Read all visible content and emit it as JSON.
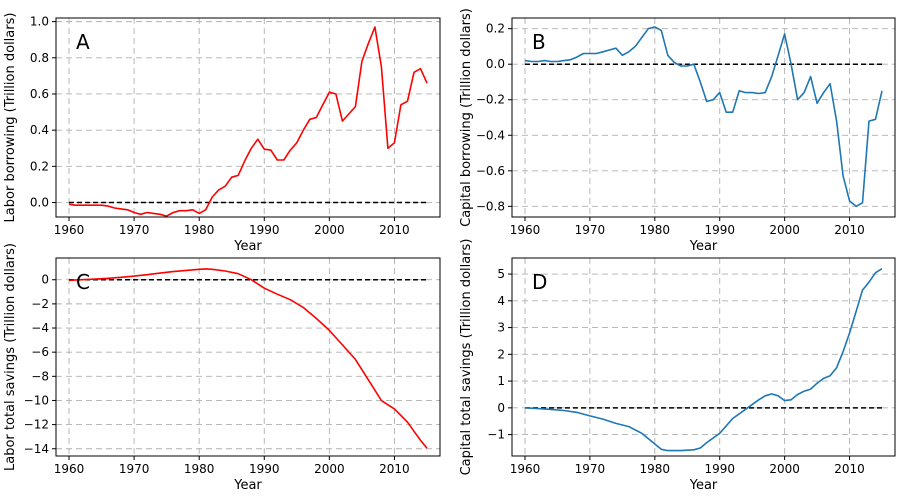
{
  "chart_data": [
    {
      "type": "line",
      "panel_label": "A",
      "xlabel": "Year",
      "ylabel": "Labor borrowing (Trillion dollars)",
      "xlim": [
        1958,
        2017
      ],
      "ylim": [
        -0.08,
        1.02
      ],
      "x_ticks": [
        1960,
        1970,
        1980,
        1990,
        2000,
        2010
      ],
      "y_ticks": [
        0.0,
        0.2,
        0.4,
        0.6,
        0.8,
        1.0
      ],
      "y_tick_labels": [
        "0.0",
        "0.2",
        "0.4",
        "0.6",
        "0.8",
        "1.0"
      ],
      "grid": true,
      "reference_line": {
        "y": 0,
        "x_from": 1960,
        "x_to": 2015,
        "style": "dashed",
        "color": "#000000"
      },
      "series": [
        {
          "color": "#ff0000",
          "x": [
            1960,
            1961,
            1962,
            1963,
            1964,
            1965,
            1966,
            1967,
            1968,
            1969,
            1970,
            1971,
            1972,
            1973,
            1974,
            1975,
            1976,
            1977,
            1978,
            1979,
            1980,
            1981,
            1982,
            1983,
            1984,
            1985,
            1986,
            1987,
            1988,
            1989,
            1990,
            1991,
            1992,
            1993,
            1994,
            1995,
            1996,
            1997,
            1998,
            1999,
            2000,
            2001,
            2002,
            2003,
            2004,
            2005,
            2006,
            2007,
            2008,
            2009,
            2010,
            2011,
            2012,
            2013,
            2014,
            2015
          ],
          "y": [
            -0.01,
            -0.015,
            -0.015,
            -0.015,
            -0.015,
            -0.015,
            -0.02,
            -0.03,
            -0.035,
            -0.04,
            -0.055,
            -0.065,
            -0.055,
            -0.06,
            -0.065,
            -0.075,
            -0.055,
            -0.045,
            -0.045,
            -0.04,
            -0.06,
            -0.04,
            0.03,
            0.07,
            0.09,
            0.14,
            0.15,
            0.23,
            0.3,
            0.35,
            0.295,
            0.29,
            0.235,
            0.235,
            0.29,
            0.33,
            0.4,
            0.46,
            0.47,
            0.54,
            0.61,
            0.6,
            0.45,
            0.49,
            0.53,
            0.78,
            0.88,
            0.97,
            0.75,
            0.3,
            0.33,
            0.54,
            0.56,
            0.72,
            0.74,
            0.66
          ]
        }
      ]
    },
    {
      "type": "line",
      "panel_label": "B",
      "xlabel": "Year",
      "ylabel": "Capital borrowing (Trillion dollars)",
      "xlim": [
        1958,
        2017
      ],
      "ylim": [
        -0.86,
        0.26
      ],
      "x_ticks": [
        1960,
        1970,
        1980,
        1990,
        2000,
        2010
      ],
      "y_ticks": [
        -0.8,
        -0.6,
        -0.4,
        -0.2,
        0.0,
        0.2
      ],
      "y_tick_labels": [
        "−0.8",
        "−0.6",
        "−0.4",
        "−0.2",
        "0.0",
        "0.2"
      ],
      "grid": true,
      "reference_line": {
        "y": 0,
        "x_from": 1960,
        "x_to": 2015,
        "style": "dashed",
        "color": "#000000"
      },
      "series": [
        {
          "color": "#1f77b4",
          "x": [
            1960,
            1961,
            1962,
            1963,
            1964,
            1965,
            1966,
            1967,
            1968,
            1969,
            1970,
            1971,
            1972,
            1973,
            1974,
            1975,
            1976,
            1977,
            1978,
            1979,
            1980,
            1981,
            1982,
            1983,
            1984,
            1985,
            1986,
            1987,
            1988,
            1989,
            1990,
            1991,
            1992,
            1993,
            1994,
            1995,
            1996,
            1997,
            1998,
            1999,
            2000,
            2001,
            2002,
            2003,
            2004,
            2005,
            2006,
            2007,
            2008,
            2009,
            2010,
            2011,
            2012,
            2013,
            2014,
            2015
          ],
          "y": [
            0.02,
            0.015,
            0.015,
            0.02,
            0.015,
            0.015,
            0.02,
            0.025,
            0.04,
            0.06,
            0.06,
            0.06,
            0.07,
            0.08,
            0.09,
            0.05,
            0.07,
            0.1,
            0.15,
            0.2,
            0.21,
            0.19,
            0.05,
            0.01,
            -0.01,
            -0.01,
            0.0,
            -0.1,
            -0.21,
            -0.2,
            -0.16,
            -0.27,
            -0.27,
            -0.15,
            -0.16,
            -0.16,
            -0.165,
            -0.16,
            -0.07,
            0.05,
            0.17,
            0.0,
            -0.2,
            -0.16,
            -0.07,
            -0.22,
            -0.16,
            -0.11,
            -0.32,
            -0.63,
            -0.77,
            -0.8,
            -0.78,
            -0.32,
            -0.31,
            -0.15
          ]
        }
      ]
    },
    {
      "type": "line",
      "panel_label": "C",
      "xlabel": "Year",
      "ylabel": "Labor total savings (Trillion dollars)",
      "xlim": [
        1958,
        2017
      ],
      "ylim": [
        -14.6,
        1.8
      ],
      "x_ticks": [
        1960,
        1970,
        1980,
        1990,
        2000,
        2010
      ],
      "y_ticks": [
        -14,
        -12,
        -10,
        -8,
        -6,
        -4,
        -2,
        0
      ],
      "y_tick_labels": [
        "−14",
        "−12",
        "−10",
        "−8",
        "−6",
        "−4",
        "−2",
        "0"
      ],
      "grid": true,
      "reference_line": {
        "y": 0,
        "x_from": 1960,
        "x_to": 2015,
        "style": "dashed",
        "color": "#000000"
      },
      "series": [
        {
          "color": "#ff0000",
          "x": [
            1960,
            1962,
            1964,
            1966,
            1968,
            1970,
            1972,
            1974,
            1976,
            1978,
            1980,
            1981,
            1982,
            1984,
            1986,
            1988,
            1990,
            1992,
            1994,
            1996,
            1998,
            2000,
            2002,
            2004,
            2006,
            2008,
            2010,
            2012,
            2014,
            2015
          ],
          "y": [
            -0.05,
            0.0,
            0.05,
            0.12,
            0.2,
            0.3,
            0.42,
            0.55,
            0.67,
            0.77,
            0.86,
            0.9,
            0.86,
            0.72,
            0.5,
            0.0,
            -0.7,
            -1.2,
            -1.65,
            -2.3,
            -3.2,
            -4.2,
            -5.4,
            -6.6,
            -8.3,
            -10.0,
            -10.7,
            -11.8,
            -13.3,
            -13.95
          ]
        }
      ]
    },
    {
      "type": "line",
      "panel_label": "D",
      "xlabel": "Year",
      "ylabel": "Capital total savings (Trillion dollars)",
      "xlim": [
        1958,
        2017
      ],
      "ylim": [
        -1.8,
        5.6
      ],
      "x_ticks": [
        1960,
        1970,
        1980,
        1990,
        2000,
        2010
      ],
      "y_ticks": [
        -1,
        0,
        1,
        2,
        3,
        4,
        5
      ],
      "y_tick_labels": [
        "−1",
        "0",
        "1",
        "2",
        "3",
        "4",
        "5"
      ],
      "grid": true,
      "reference_line": {
        "y": 0,
        "x_from": 1960,
        "x_to": 2015,
        "style": "dashed",
        "color": "#000000"
      },
      "series": [
        {
          "color": "#1f77b4",
          "x": [
            1960,
            1962,
            1964,
            1966,
            1968,
            1970,
            1972,
            1974,
            1976,
            1978,
            1980,
            1981,
            1982,
            1984,
            1986,
            1987,
            1988,
            1990,
            1992,
            1994,
            1996,
            1997,
            1998,
            1999,
            2000,
            2001,
            2002,
            2003,
            2004,
            2005,
            2006,
            2007,
            2008,
            2009,
            2010,
            2011,
            2012,
            2013,
            2014,
            2015
          ],
          "y": [
            0.0,
            -0.03,
            -0.06,
            -0.1,
            -0.17,
            -0.3,
            -0.42,
            -0.58,
            -0.7,
            -0.95,
            -1.35,
            -1.55,
            -1.6,
            -1.6,
            -1.57,
            -1.5,
            -1.3,
            -0.95,
            -0.4,
            -0.05,
            0.3,
            0.45,
            0.52,
            0.45,
            0.27,
            0.3,
            0.5,
            0.62,
            0.7,
            0.92,
            1.1,
            1.2,
            1.5,
            2.1,
            2.8,
            3.6,
            4.4,
            4.7,
            5.05,
            5.2
          ]
        }
      ]
    }
  ]
}
